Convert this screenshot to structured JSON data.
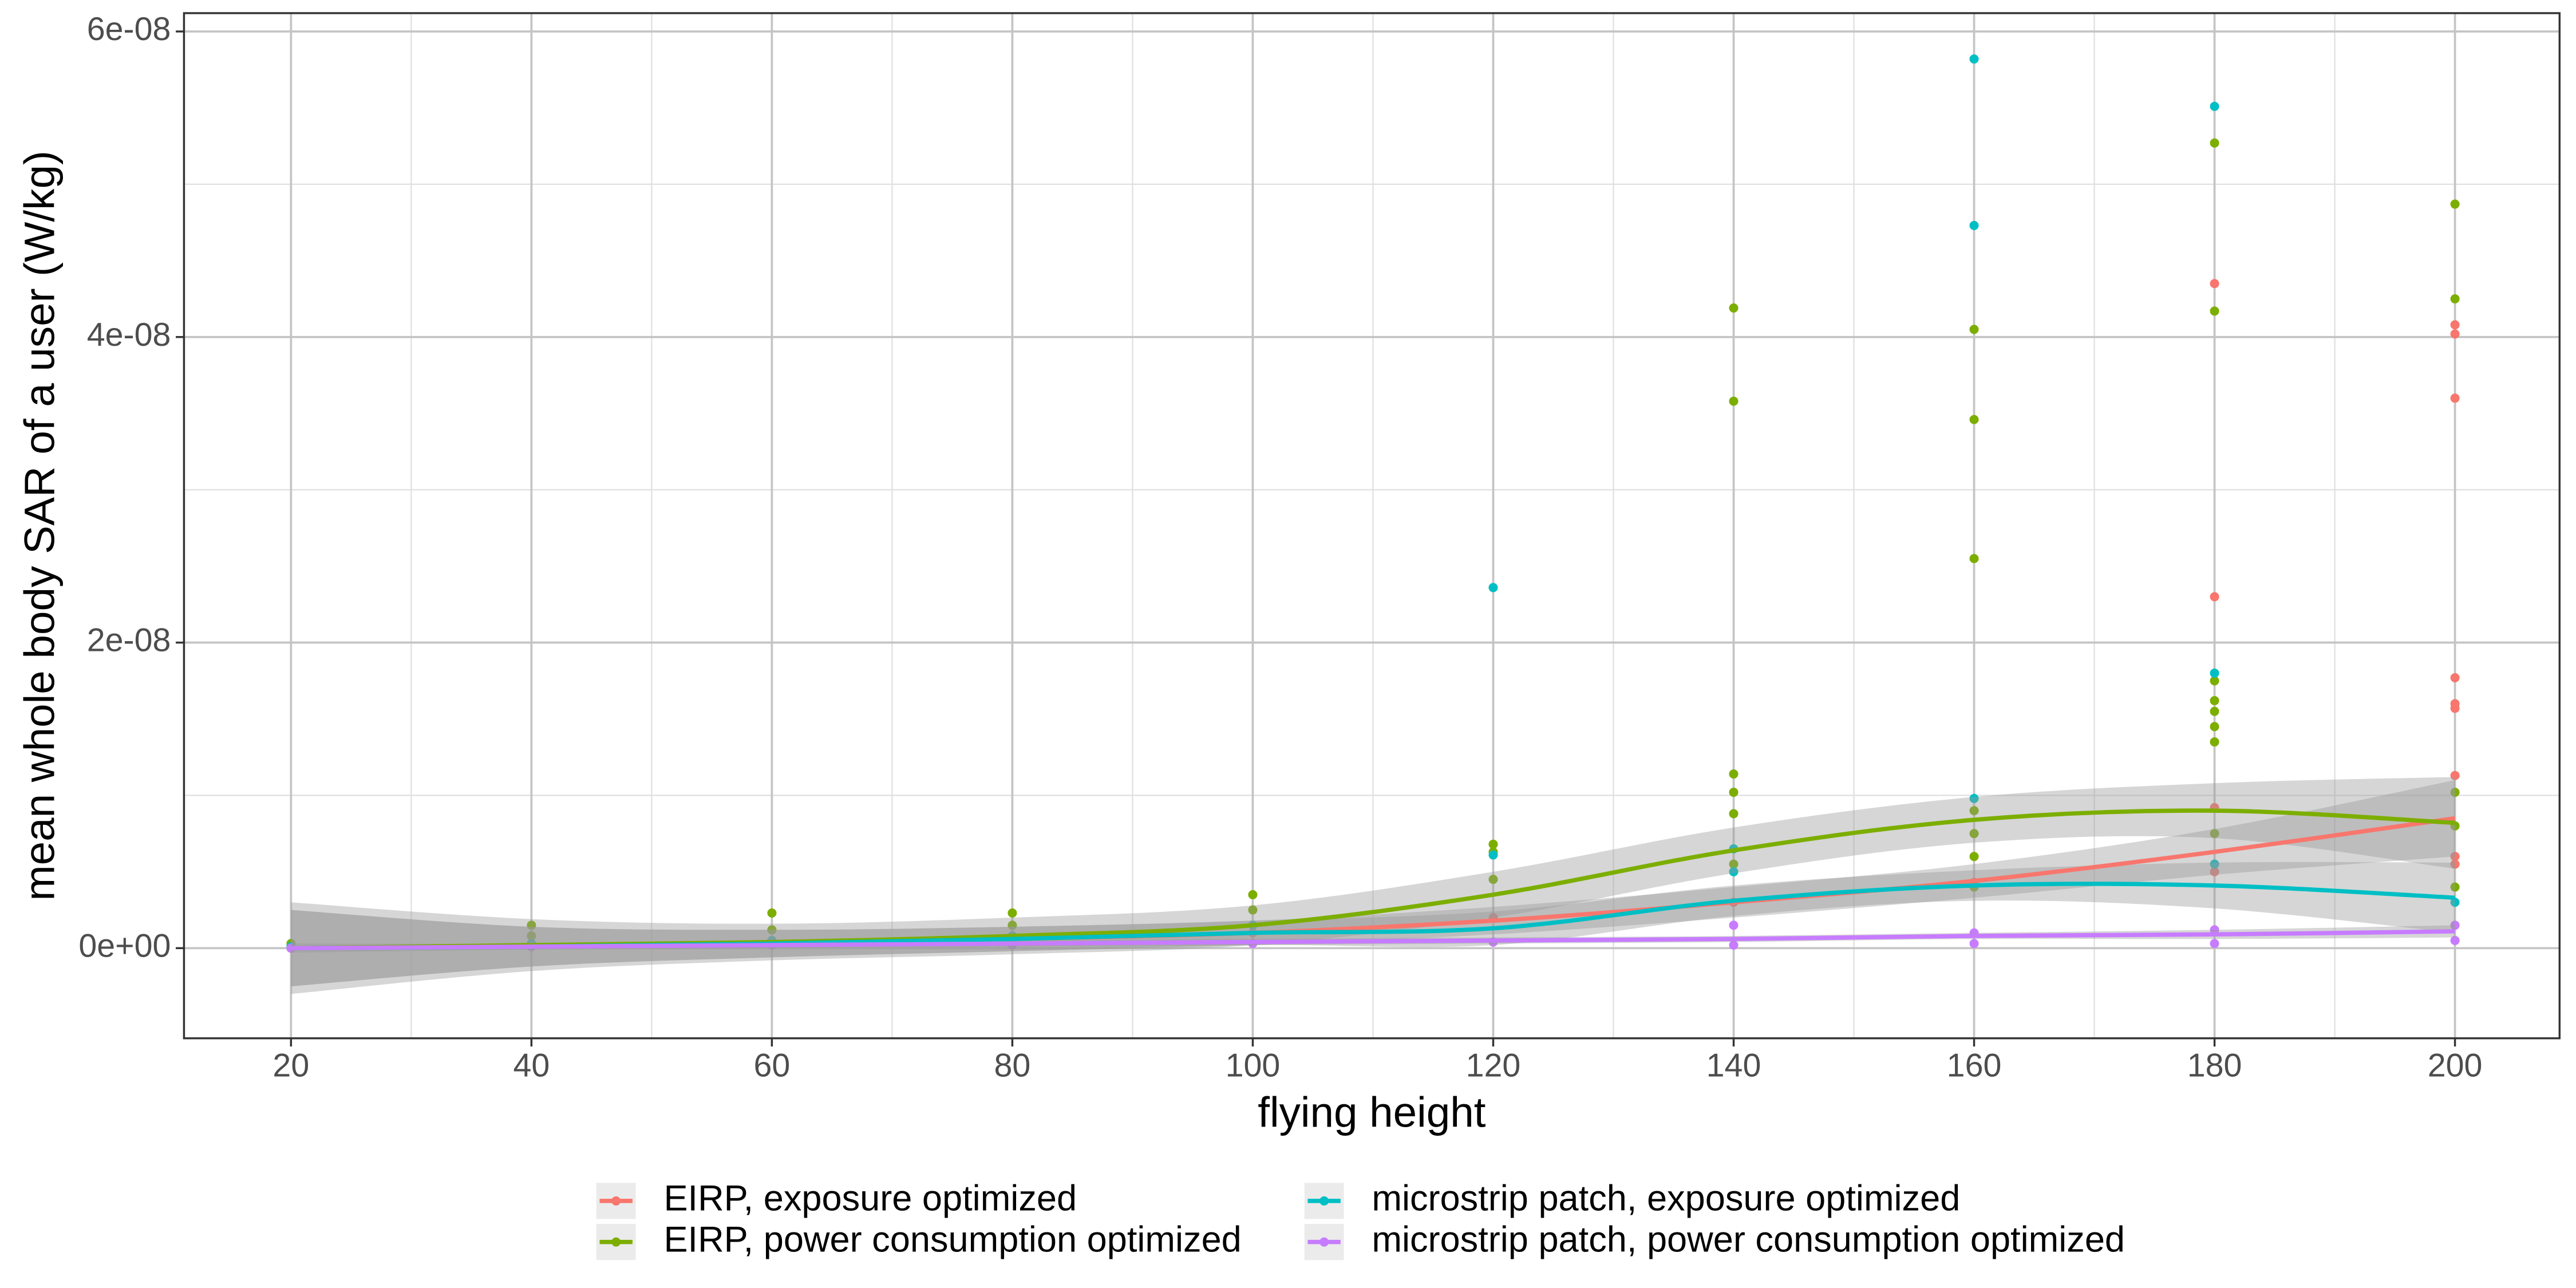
{
  "chart_data": {
    "type": "scatter-smooth",
    "x_label": "flying height",
    "y_label": "mean whole body SAR of a user (W/kg)",
    "xlim": [
      11.1,
      208.7
    ],
    "ylim": [
      -5.9e-09,
      6.12e-08
    ],
    "xticks": [
      20,
      40,
      60,
      80,
      100,
      120,
      140,
      160,
      180,
      200
    ],
    "xminor_ticks": [
      30,
      50,
      70,
      90,
      110,
      130,
      150,
      170,
      190
    ],
    "yticks": [
      {
        "value": 0,
        "label": "0e+00"
      },
      {
        "value": 2e-08,
        "label": "2e-08"
      },
      {
        "value": 4e-08,
        "label": "4e-08"
      },
      {
        "value": 6e-08,
        "label": "6e-08"
      }
    ],
    "yminor_ticks": [
      1e-08,
      3e-08,
      5e-08
    ],
    "grid": true,
    "legend_position": "bottom",
    "band_color": "#999999",
    "series": [
      {
        "name": "EIRP, exposure optimized",
        "color": "#F8766D",
        "x": [
          200,
          200,
          200,
          200,
          200,
          200,
          200,
          200,
          200,
          180,
          180,
          180,
          180,
          160,
          140,
          120,
          100,
          80,
          60,
          40,
          20
        ],
        "values": [
          4.08e-08,
          4.02e-08,
          3.6e-08,
          1.77e-08,
          1.6e-08,
          1.57e-08,
          1.13e-08,
          6e-09,
          5.5e-09,
          4.35e-08,
          2.3e-08,
          9.2e-09,
          5e-09,
          4.3e-09,
          3e-09,
          2e-09,
          1e-09,
          5e-10,
          3e-10,
          1e-10,
          0
        ],
        "smooth": {
          "x": [
            20,
            40,
            60,
            80,
            100,
            120,
            140,
            160,
            180,
            200
          ],
          "values": [
            0,
            1e-10,
            3e-10,
            6e-10,
            1e-09,
            1.8e-09,
            3e-09,
            4.4e-09,
            6.3e-09,
            8.5e-09
          ],
          "lower": [
            -2.5e-09,
            -1.2e-09,
            -6e-10,
            -2e-10,
            2e-10,
            9e-10,
            2e-09,
            3.3e-09,
            4.8e-09,
            6e-09
          ],
          "upper": [
            2.5e-09,
            1.4e-09,
            1.2e-09,
            1.4e-09,
            1.8e-09,
            2.7e-09,
            4e-09,
            5.5e-09,
            7.8e-09,
            1.1e-08
          ]
        }
      },
      {
        "name": "EIRP, power consumption optimized",
        "color": "#7CAE00",
        "x": [
          200,
          200,
          200,
          200,
          200,
          180,
          180,
          180,
          180,
          180,
          180,
          180,
          180,
          160,
          160,
          160,
          160,
          160,
          160,
          160,
          140,
          140,
          140,
          140,
          140,
          140,
          120,
          120,
          120,
          100,
          100,
          80,
          80,
          60,
          60,
          40,
          40,
          20
        ],
        "values": [
          4.87e-08,
          4.25e-08,
          1.02e-08,
          8e-09,
          4e-09,
          5.27e-08,
          4.17e-08,
          1.75e-08,
          1.62e-08,
          1.55e-08,
          1.45e-08,
          1.35e-08,
          7.5e-09,
          4.05e-08,
          3.46e-08,
          2.55e-08,
          9e-09,
          7.5e-09,
          6e-09,
          4e-09,
          4.19e-08,
          3.58e-08,
          1.14e-08,
          1.02e-08,
          8.8e-09,
          5.5e-09,
          6.8e-09,
          6.3e-09,
          4.5e-09,
          3.5e-09,
          2.5e-09,
          2.3e-09,
          1.5e-09,
          2.3e-09,
          1.2e-09,
          1.5e-09,
          8e-10,
          3e-10
        ],
        "smooth": {
          "x": [
            20,
            40,
            60,
            80,
            100,
            120,
            140,
            160,
            180,
            200
          ],
          "values": [
            0,
            2e-10,
            4e-10,
            8e-10,
            1.5e-09,
            3.5e-09,
            6.4e-09,
            8.4e-09,
            9e-09,
            8.2e-09
          ],
          "lower": [
            -3e-09,
            -1.5e-09,
            -8e-10,
            -4e-10,
            2e-10,
            2e-09,
            4.9e-09,
            6.9e-09,
            7.2e-09,
            5.2e-09
          ],
          "upper": [
            3e-09,
            1.9e-09,
            1.6e-09,
            2e-09,
            2.8e-09,
            5e-09,
            7.9e-09,
            9.9e-09,
            1.08e-08,
            1.12e-08
          ]
        }
      },
      {
        "name": "microstrip patch, exposure optimized",
        "color": "#00BFC4",
        "x": [
          160,
          160,
          160,
          180,
          180,
          180,
          120,
          120,
          140,
          140,
          200,
          100,
          80,
          60,
          40,
          20
        ],
        "values": [
          5.82e-08,
          4.73e-08,
          9.8e-09,
          5.51e-08,
          1.8e-08,
          5.5e-09,
          2.36e-08,
          6.1e-09,
          6.5e-09,
          5e-09,
          3e-09,
          1.5e-09,
          8e-10,
          5e-10,
          3e-10,
          1e-10
        ],
        "smooth": {
          "x": [
            20,
            40,
            60,
            80,
            100,
            120,
            140,
            160,
            180,
            200
          ],
          "values": [
            0,
            1e-10,
            3e-10,
            6e-10,
            1e-09,
            1.3e-09,
            3.1e-09,
            4.1e-09,
            4.1e-09,
            3.3e-09
          ],
          "lower": [
            -2.5e-09,
            -1.2e-09,
            -6e-10,
            -2e-10,
            2e-10,
            2e-10,
            2.1e-09,
            3.1e-09,
            2.6e-09,
            1e-09
          ],
          "upper": [
            2.5e-09,
            1.4e-09,
            1.2e-09,
            1.4e-09,
            1.8e-09,
            2.4e-09,
            4.1e-09,
            5.1e-09,
            5.6e-09,
            5.6e-09
          ]
        }
      },
      {
        "name": "microstrip patch, power consumption optimized",
        "color": "#C77CFF",
        "x": [
          200,
          200,
          180,
          180,
          160,
          160,
          140,
          140,
          120,
          100,
          80,
          60,
          40,
          20
        ],
        "values": [
          1.5e-09,
          5e-10,
          1.2e-09,
          3e-10,
          1e-09,
          3e-10,
          1.5e-09,
          2e-10,
          4e-10,
          3e-10,
          2e-10,
          2e-10,
          1e-10,
          0
        ],
        "smooth": {
          "x": [
            20,
            40,
            60,
            80,
            100,
            120,
            140,
            160,
            180,
            200
          ],
          "values": [
            0,
            1e-10,
            2e-10,
            3e-10,
            4e-10,
            5e-10,
            6e-10,
            8e-10,
            9e-10,
            1.1e-09
          ],
          "lower": [
            -3e-10,
            -1e-10,
            0,
            1e-10,
            2e-10,
            3e-10,
            4e-10,
            6e-10,
            6e-10,
            7e-10
          ],
          "upper": [
            3e-10,
            3e-10,
            4e-10,
            5e-10,
            6e-10,
            7e-10,
            8e-10,
            1e-09,
            1.2e-09,
            1.5e-09
          ]
        }
      }
    ]
  }
}
